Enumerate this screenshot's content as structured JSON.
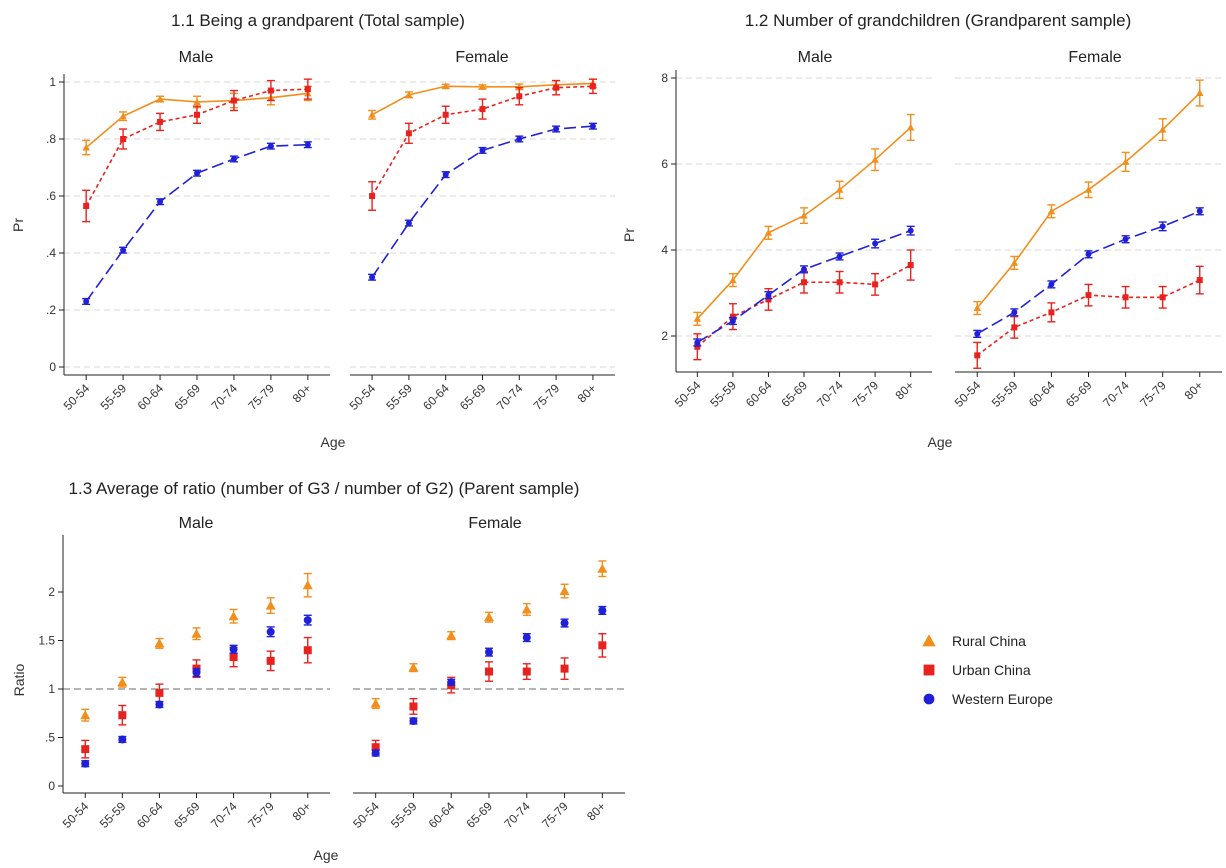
{
  "colors": {
    "rural": "#F28E1C",
    "urban": "#E8231F",
    "western": "#2020D8",
    "grid": "#d9d9d9",
    "axis": "#222222"
  },
  "legend": [
    {
      "key": "rural",
      "label": "Rural China",
      "marker": "triangle"
    },
    {
      "key": "urban",
      "label": "Urban China",
      "marker": "square"
    },
    {
      "key": "western",
      "label": "Western Europe",
      "marker": "circle"
    }
  ],
  "chart_data": [
    {
      "id": "p11",
      "type": "line",
      "title": "1.1 Being a grandparent (Total sample)",
      "ylabel": "Pr",
      "xlabel": "Age",
      "ylim": [
        0,
        1
      ],
      "yticks": [
        0,
        0.2,
        0.4,
        0.6,
        0.8,
        1
      ],
      "ytick_labels": [
        "0",
        ".2",
        ".4",
        ".6",
        ".8",
        "1"
      ],
      "grid": true,
      "categories": [
        "50-54",
        "55-59",
        "60-64",
        "65-69",
        "70-74",
        "75-79",
        "80+"
      ],
      "facets": [
        {
          "name": "Male",
          "series": [
            {
              "key": "rural",
              "values": [
                0.77,
                0.88,
                0.94,
                0.93,
                0.935,
                0.945,
                0.96
              ],
              "err": [
                0.025,
                0.015,
                0.01,
                0.02,
                0.025,
                0.025,
                0.025
              ]
            },
            {
              "key": "urban",
              "values": [
                0.565,
                0.8,
                0.86,
                0.885,
                0.935,
                0.97,
                0.975
              ],
              "err": [
                0.055,
                0.035,
                0.03,
                0.03,
                0.035,
                0.035,
                0.035
              ]
            },
            {
              "key": "western",
              "values": [
                0.23,
                0.41,
                0.58,
                0.68,
                0.73,
                0.775,
                0.78
              ],
              "err": [
                0.01,
                0.01,
                0.01,
                0.01,
                0.01,
                0.01,
                0.01
              ]
            }
          ]
        },
        {
          "name": "Female",
          "series": [
            {
              "key": "rural",
              "values": [
                0.885,
                0.955,
                0.985,
                0.983,
                0.983,
                0.99,
                0.995
              ],
              "err": [
                0.015,
                0.01,
                0.007,
                0.007,
                0.01,
                0.015,
                0.015
              ]
            },
            {
              "key": "urban",
              "values": [
                0.6,
                0.82,
                0.885,
                0.905,
                0.95,
                0.98,
                0.985
              ],
              "err": [
                0.05,
                0.035,
                0.03,
                0.035,
                0.03,
                0.025,
                0.025
              ]
            },
            {
              "key": "western",
              "values": [
                0.315,
                0.505,
                0.675,
                0.76,
                0.8,
                0.835,
                0.845
              ],
              "err": [
                0.01,
                0.01,
                0.01,
                0.01,
                0.01,
                0.01,
                0.01
              ]
            }
          ]
        }
      ]
    },
    {
      "id": "p12",
      "type": "line",
      "title": "1.2 Number of grandchildren (Grandparent sample)",
      "ylabel": "Pr",
      "xlabel": "Age",
      "ylim": [
        1,
        8
      ],
      "yticks": [
        2,
        4,
        6,
        8
      ],
      "ytick_labels": [
        "2",
        "4",
        "6",
        "8"
      ],
      "grid": true,
      "categories": [
        "50-54",
        "55-59",
        "60-64",
        "65-69",
        "70-74",
        "75-79",
        "80+"
      ],
      "facets": [
        {
          "name": "Male",
          "series": [
            {
              "key": "rural",
              "values": [
                2.4,
                3.3,
                4.4,
                4.8,
                5.4,
                6.1,
                6.85
              ],
              "err": [
                0.15,
                0.15,
                0.15,
                0.18,
                0.2,
                0.25,
                0.3
              ]
            },
            {
              "key": "urban",
              "values": [
                1.75,
                2.45,
                2.85,
                3.25,
                3.25,
                3.2,
                3.65
              ],
              "err": [
                0.3,
                0.3,
                0.25,
                0.25,
                0.25,
                0.25,
                0.35
              ]
            },
            {
              "key": "western",
              "values": [
                1.85,
                2.35,
                2.95,
                3.55,
                3.85,
                4.15,
                4.45
              ],
              "err": [
                0.08,
                0.08,
                0.08,
                0.08,
                0.08,
                0.1,
                0.1
              ]
            }
          ]
        },
        {
          "name": "Female",
          "series": [
            {
              "key": "rural",
              "values": [
                2.65,
                3.7,
                4.9,
                5.4,
                6.05,
                6.8,
                7.65
              ],
              "err": [
                0.15,
                0.15,
                0.15,
                0.18,
                0.22,
                0.25,
                0.3
              ]
            },
            {
              "key": "urban",
              "values": [
                1.55,
                2.2,
                2.55,
                2.95,
                2.9,
                2.9,
                3.3
              ],
              "err": [
                0.3,
                0.25,
                0.22,
                0.25,
                0.25,
                0.25,
                0.32
              ]
            },
            {
              "key": "western",
              "values": [
                2.05,
                2.55,
                3.2,
                3.9,
                4.25,
                4.55,
                4.9
              ],
              "err": [
                0.08,
                0.08,
                0.08,
                0.08,
                0.08,
                0.1,
                0.08
              ]
            }
          ]
        }
      ]
    },
    {
      "id": "p13",
      "type": "scatter",
      "title": "1.3 Average of ratio (number of G3 / number of G2) (Parent sample)",
      "ylabel": "Ratio",
      "xlabel": "Age",
      "ylim": [
        0,
        2.5
      ],
      "yticks": [
        0,
        0.5,
        1,
        1.5,
        2
      ],
      "ytick_labels": [
        "0",
        ".5",
        "1",
        "1.5",
        "2"
      ],
      "grid": false,
      "reference_line": 1,
      "categories": [
        "50-54",
        "55-59",
        "60-64",
        "65-69",
        "70-74",
        "75-79",
        "80+"
      ],
      "facets": [
        {
          "name": "Male",
          "series": [
            {
              "key": "rural",
              "values": [
                0.73,
                1.07,
                1.47,
                1.57,
                1.75,
                1.86,
                2.07
              ],
              "err": [
                0.06,
                0.05,
                0.05,
                0.06,
                0.07,
                0.08,
                0.12
              ]
            },
            {
              "key": "urban",
              "values": [
                0.38,
                0.73,
                0.96,
                1.21,
                1.33,
                1.29,
                1.4
              ],
              "err": [
                0.09,
                0.1,
                0.09,
                0.09,
                0.1,
                0.1,
                0.13
              ]
            },
            {
              "key": "western",
              "values": [
                0.23,
                0.48,
                0.84,
                1.17,
                1.41,
                1.59,
                1.71
              ],
              "err": [
                0.03,
                0.03,
                0.03,
                0.04,
                0.04,
                0.05,
                0.05
              ]
            }
          ]
        },
        {
          "name": "Female",
          "series": [
            {
              "key": "rural",
              "values": [
                0.85,
                1.22,
                1.55,
                1.74,
                1.82,
                2.01,
                2.24
              ],
              "err": [
                0.05,
                0.04,
                0.04,
                0.05,
                0.06,
                0.07,
                0.08
              ]
            },
            {
              "key": "urban",
              "values": [
                0.4,
                0.82,
                1.04,
                1.18,
                1.18,
                1.21,
                1.45
              ],
              "err": [
                0.07,
                0.08,
                0.08,
                0.1,
                0.08,
                0.11,
                0.12
              ]
            },
            {
              "key": "western",
              "values": [
                0.34,
                0.67,
                1.07,
                1.38,
                1.53,
                1.68,
                1.81
              ],
              "err": [
                0.03,
                0.03,
                0.03,
                0.04,
                0.04,
                0.04,
                0.04
              ]
            }
          ]
        }
      ]
    }
  ]
}
